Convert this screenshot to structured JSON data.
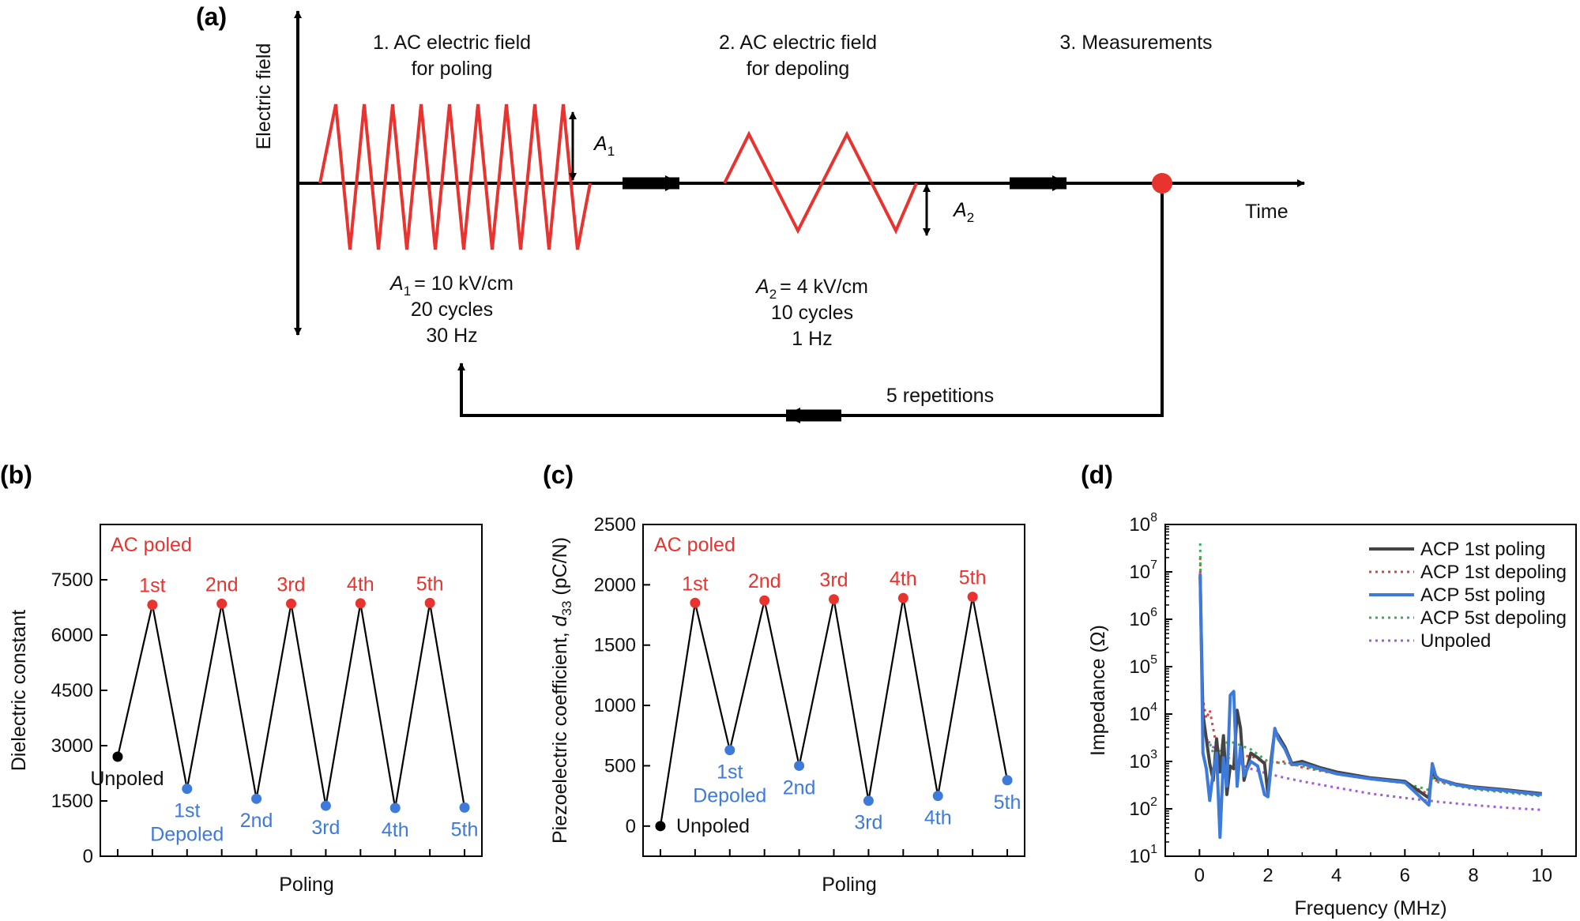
{
  "panel_a": {
    "label": "(a)",
    "y_axis_label": "Electric field",
    "x_axis_label": "Time",
    "step1_line1": "1. AC electric field",
    "step1_line2": "for poling",
    "step2_line1": "2. AC electric field",
    "step2_line2": "for depoling",
    "step3": "3. Measurements",
    "a1_symbol": "A",
    "a1_sub": "1",
    "a2_symbol": "A",
    "a2_sub": "2",
    "poling_params": [
      "= 10 kV/cm",
      "20 cycles",
      "30 Hz"
    ],
    "depoling_params": [
      "= 4 kV/cm",
      "10 cycles",
      "1 Hz"
    ],
    "repetitions": "5 repetitions",
    "colors": {
      "waveform": "#e8332f",
      "marker": "#e8332f"
    }
  },
  "chart_data": [
    {
      "panel": "(b)",
      "type": "line",
      "xlabel": "Poling",
      "ylabel": "Dielectric constant",
      "ylim": [
        0,
        9000
      ],
      "yticks": [
        0,
        1500,
        3000,
        4500,
        6000,
        7500
      ],
      "legend_text": "AC poled",
      "unpoled_label": "Unpoled",
      "depoled_label": "Depoled",
      "values": [
        2700,
        6820,
        1830,
        6850,
        1560,
        6850,
        1370,
        6860,
        1310,
        6870,
        1320
      ],
      "point_labels": [
        "",
        "1st",
        "1st",
        "2nd",
        "2nd",
        "3rd",
        "3rd",
        "4th",
        "4th",
        "5th",
        "5th"
      ],
      "point_kinds": [
        "unpoled",
        "poled",
        "depoled",
        "poled",
        "depoled",
        "poled",
        "depoled",
        "poled",
        "depoled",
        "poled",
        "depoled"
      ],
      "colors": {
        "poled": "#e8332f",
        "depoled": "#3d7ad9",
        "unpoled": "#000000"
      }
    },
    {
      "panel": "(c)",
      "type": "line",
      "xlabel": "Poling",
      "ylabel_pre": "Piezoelectric coefficient, ",
      "ylabel_sym": "d",
      "ylabel_sub": "33",
      "ylabel_post": " (pC/N)",
      "ylim": [
        -250,
        2500
      ],
      "yticks": [
        0,
        500,
        1000,
        1500,
        2000,
        2500
      ],
      "legend_text": "AC poled",
      "unpoled_label": "Unpoled",
      "depoled_label": "Depoled",
      "values": [
        0,
        1850,
        630,
        1870,
        500,
        1880,
        210,
        1890,
        250,
        1900,
        380
      ],
      "point_labels": [
        "",
        "1st",
        "1st",
        "2nd",
        "2nd",
        "3rd",
        "3rd",
        "4th",
        "4th",
        "5th",
        "5th"
      ],
      "point_kinds": [
        "unpoled",
        "poled",
        "depoled",
        "poled",
        "depoled",
        "poled",
        "depoled",
        "poled",
        "depoled",
        "poled",
        "depoled"
      ],
      "colors": {
        "poled": "#e8332f",
        "depoled": "#3d7ad9",
        "unpoled": "#000000"
      }
    },
    {
      "panel": "(d)",
      "type": "line",
      "xlabel": "Frequency (MHz)",
      "ylabel": "Impedance (Ω)",
      "yscale": "log",
      "xlim": [
        -1,
        11
      ],
      "xticks": [
        0,
        2,
        4,
        6,
        8,
        10
      ],
      "ylim_exp": [
        1,
        8
      ],
      "ytick_exp": [
        1,
        2,
        3,
        4,
        5,
        6,
        7,
        8
      ],
      "series": [
        {
          "name": "ACP 1st poling",
          "color": "#444444",
          "dash": "",
          "width": 4,
          "x": [
            0.02,
            0.05,
            0.1,
            0.2,
            0.3,
            0.4,
            0.5,
            0.6,
            0.7,
            0.8,
            0.9,
            1.0,
            1.1,
            1.2,
            1.3,
            1.5,
            1.7,
            1.9,
            2.0,
            2.1,
            2.2,
            2.3,
            2.5,
            2.7,
            3.0,
            3.5,
            4.0,
            5.0,
            6.0,
            6.7,
            6.8,
            6.9,
            7.0,
            7.5,
            8.0,
            9.0,
            10.0
          ],
          "y": [
            8000000,
            500000,
            10000,
            3000,
            900,
            400,
            3000,
            600,
            3500,
            200,
            800,
            700,
            12000,
            5000,
            400,
            1500,
            1200,
            900,
            200,
            1200,
            4500,
            3500,
            2000,
            900,
            1000,
            750,
            600,
            450,
            380,
            170,
            700,
            450,
            420,
            330,
            290,
            250,
            210
          ]
        },
        {
          "name": "ACP 1st depoling",
          "color": "#e04040",
          "dash": "3 5",
          "width": 3,
          "x": [
            0.02,
            0.05,
            0.1,
            0.2,
            0.3,
            0.4,
            0.5,
            0.7,
            1.0,
            1.5,
            2.0,
            2.5,
            3.0,
            4.0,
            5.0,
            6.0,
            6.7,
            6.8,
            6.9,
            7.0,
            8.0,
            9.0,
            10.0
          ],
          "y": [
            20000000,
            300000,
            20000,
            8000,
            12000,
            5000,
            2000,
            1500,
            1300,
            1300,
            900,
            1000,
            750,
            550,
            430,
            360,
            200,
            600,
            400,
            380,
            270,
            230,
            190
          ]
        },
        {
          "name": "ACP 5st poling",
          "color": "#3d7ad9",
          "dash": "",
          "width": 4,
          "x": [
            0.02,
            0.05,
            0.1,
            0.2,
            0.3,
            0.4,
            0.5,
            0.6,
            0.7,
            0.8,
            0.9,
            1.0,
            1.1,
            1.2,
            1.3,
            1.5,
            1.7,
            1.9,
            2.0,
            2.1,
            2.2,
            2.3,
            2.5,
            2.7,
            3.0,
            3.5,
            4.0,
            5.0,
            6.0,
            6.7,
            6.8,
            6.9,
            7.0,
            7.5,
            8.0,
            9.0,
            10.0
          ],
          "y": [
            9000000,
            600000,
            1500,
            700,
            150,
            600,
            1500,
            25,
            1200,
            300,
            25000,
            30000,
            300,
            2000,
            500,
            1000,
            800,
            200,
            180,
            900,
            5000,
            3000,
            1800,
            850,
            900,
            700,
            550,
            430,
            360,
            120,
            900,
            500,
            420,
            320,
            280,
            240,
            200
          ]
        },
        {
          "name": "ACP 5st depoling",
          "color": "#3aad5a",
          "dash": "3 5",
          "width": 3,
          "x": [
            0.02,
            0.05,
            0.1,
            0.2,
            0.3,
            0.4,
            0.5,
            0.7,
            1.0,
            1.5,
            2.0,
            2.5,
            3.0,
            4.0,
            5.0,
            6.0,
            6.7,
            6.8,
            6.9,
            7.0,
            8.0,
            9.0,
            10.0
          ],
          "y": [
            40000000,
            400000,
            8000,
            3000,
            2500,
            1500,
            1300,
            2500,
            2500,
            1800,
            1000,
            900,
            800,
            550,
            420,
            350,
            250,
            500,
            380,
            360,
            260,
            220,
            185
          ]
        },
        {
          "name": "Unpoled",
          "color": "#a25bdb",
          "dash": "3 5",
          "width": 3,
          "x": [
            0.02,
            0.05,
            0.1,
            0.2,
            0.4,
            0.7,
            1.0,
            1.5,
            2.0,
            2.5,
            3.0,
            4.0,
            5.0,
            6.0,
            7.0,
            8.0,
            9.0,
            10.0
          ],
          "y": [
            10000000,
            200000,
            8000,
            3000,
            2000,
            1400,
            1000,
            700,
            550,
            450,
            380,
            280,
            210,
            170,
            140,
            120,
            105,
            95
          ]
        }
      ]
    }
  ]
}
